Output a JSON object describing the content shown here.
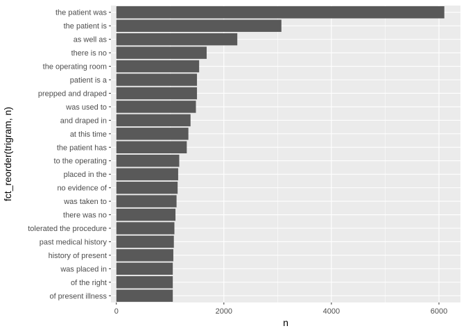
{
  "chart_data": {
    "type": "bar",
    "orientation": "horizontal",
    "xlabel": "n",
    "ylabel": "fct_reorder(trigram, n)",
    "xlim": [
      -100,
      6400
    ],
    "xticks": [
      0,
      2000,
      4000,
      6000
    ],
    "xtick_labels": [
      "0",
      "2000",
      "4000",
      "6000"
    ],
    "grid": true,
    "categories": [
      "the patient was",
      "the patient is",
      "as well as",
      "there is no",
      "the operating room",
      "patient is a",
      "prepped and draped",
      "was used to",
      "and draped in",
      "at this time",
      "the patient has",
      "to the operating",
      "placed in the",
      "no evidence of",
      "was taken to",
      "there was no",
      "tolerated the procedure",
      "past medical history",
      "history of present",
      "was placed in",
      "of the right",
      "of present illness"
    ],
    "values": [
      6100,
      3070,
      2250,
      1680,
      1540,
      1500,
      1500,
      1480,
      1380,
      1340,
      1310,
      1170,
      1150,
      1140,
      1120,
      1100,
      1080,
      1070,
      1060,
      1050,
      1050,
      1050
    ],
    "colors": {
      "panel": "#ebebeb",
      "bar": "#595959",
      "grid_major": "#ffffff",
      "text": "#4d4d4d"
    }
  }
}
